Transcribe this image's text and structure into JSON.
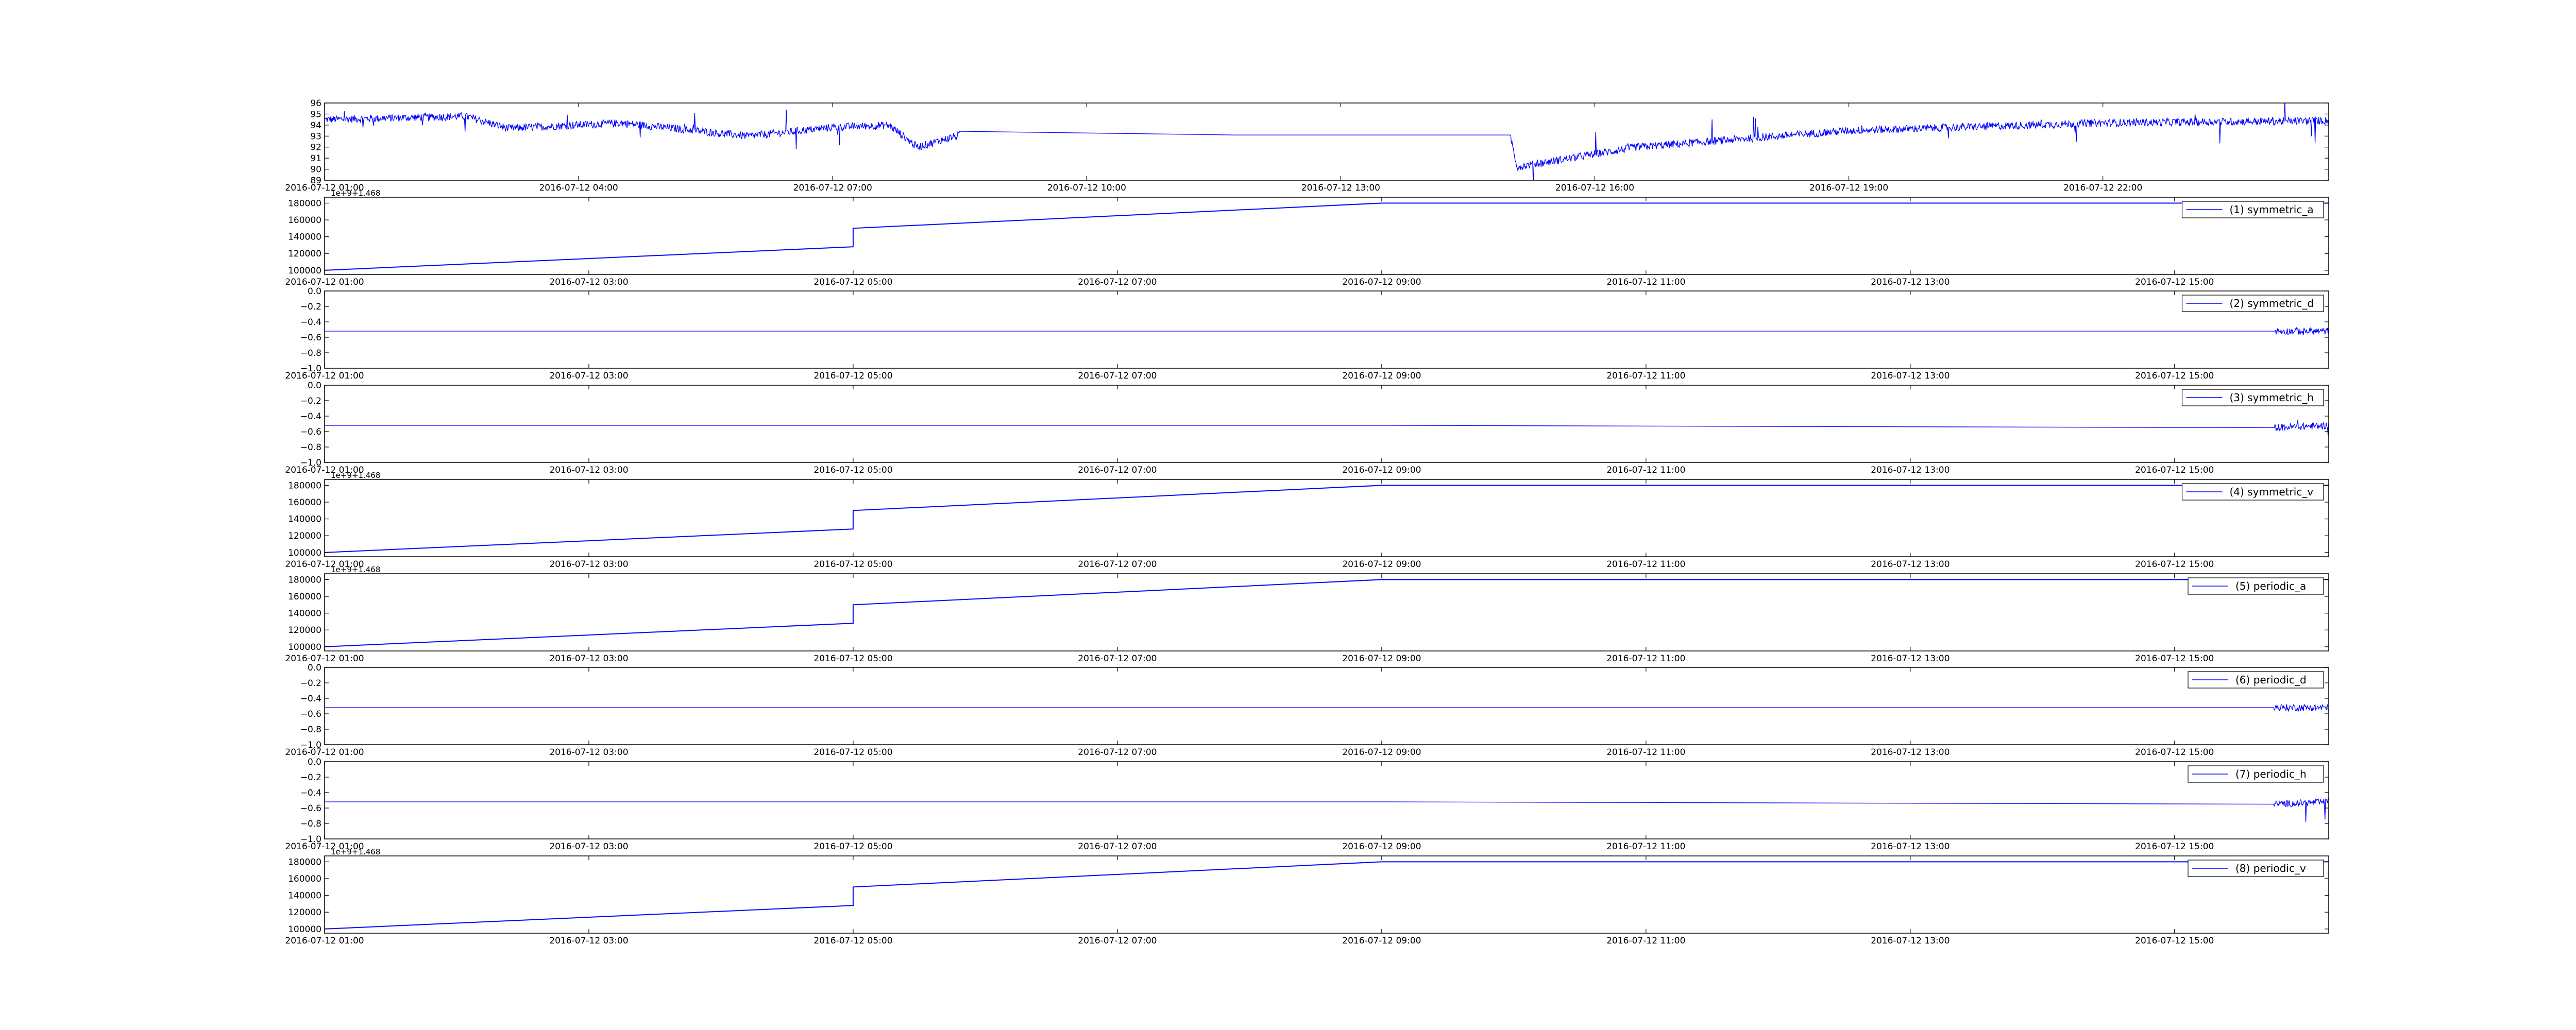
{
  "chart_data": [
    {
      "type": "line",
      "panel": 0,
      "title": "",
      "xlabel": "",
      "ylabel": "",
      "x_tick_labels": [
        "2016-07-12 01:00",
        "2016-07-12 04:00",
        "2016-07-12 07:00",
        "2016-07-12 10:00",
        "2016-07-12 13:00",
        "2016-07-12 16:00",
        "2016-07-12 19:00",
        "2016-07-12 22:00"
      ],
      "xlim": [
        "2016-07-12 01:00",
        "2016-07-13 00:40"
      ],
      "y_ticks": [
        89,
        90,
        91,
        92,
        93,
        94,
        95,
        96
      ],
      "ylim": [
        89,
        96
      ],
      "grid": false,
      "color": "#0000ff",
      "noise": 0.35,
      "series": [
        {
          "x": [
            "2016-07-12 01:00",
            "2016-07-12 02:40",
            "2016-07-12 03:10",
            "2016-07-12 04:30",
            "2016-07-12 06:00",
            "2016-07-12 07:00",
            "2016-07-12 07:40",
            "2016-07-12 08:00",
            "2016-07-12 08:30",
            "2016-07-12 15:00",
            "2016-07-12 15:05",
            "2016-07-12 16:30",
            "2016-07-12 19:00",
            "2016-07-12 22:00",
            "2016-07-13 00:40"
          ],
          "y": [
            94.5,
            94.8,
            93.7,
            94.2,
            93.0,
            93.8,
            94.0,
            92.0,
            93.1,
            93.1,
            90.2,
            92.0,
            93.5,
            94.2,
            94.4
          ]
        }
      ]
    },
    {
      "type": "line",
      "panel": 1,
      "title": "",
      "xlabel": "",
      "ylabel": "",
      "x_tick_labels": [
        "2016-07-12 01:00",
        "2016-07-12 03:00",
        "2016-07-12 05:00",
        "2016-07-12 07:00",
        "2016-07-12 09:00",
        "2016-07-12 11:00",
        "2016-07-12 13:00",
        "2016-07-12 15:00"
      ],
      "xlim": [
        "2016-07-12 01:00",
        "2016-07-12 16:10"
      ],
      "y_ticks": [
        100000,
        120000,
        140000,
        160000,
        180000
      ],
      "ylim": [
        95000,
        187000
      ],
      "offset_text": "1e+9+1.468",
      "grid": false,
      "color": "#0000ff",
      "noise": 0,
      "legend": "(1) symmetric_a",
      "legend_loc": "upper right",
      "series": [
        {
          "name": "(1) symmetric_a",
          "x": [
            "2016-07-12 01:00",
            "2016-07-12 05:00",
            "2016-07-12 05:00",
            "2016-07-12 09:00",
            "2016-07-12 16:10"
          ],
          "y": [
            100000,
            128000,
            150000,
            180000,
            180000
          ]
        }
      ]
    },
    {
      "type": "line",
      "panel": 2,
      "title": "",
      "xlabel": "",
      "ylabel": "",
      "x_tick_labels": [
        "2016-07-12 01:00",
        "2016-07-12 03:00",
        "2016-07-12 05:00",
        "2016-07-12 07:00",
        "2016-07-12 09:00",
        "2016-07-12 11:00",
        "2016-07-12 13:00",
        "2016-07-12 15:00"
      ],
      "xlim": [
        "2016-07-12 01:00",
        "2016-07-12 16:10"
      ],
      "y_ticks": [
        -1.0,
        -0.8,
        -0.6,
        -0.4,
        -0.2,
        0.0
      ],
      "y_tick_labels": [
        "−1.0",
        "−0.8",
        "−0.6",
        "−0.4",
        "−0.2",
        "0.0"
      ],
      "ylim": [
        -1.0,
        0.0
      ],
      "grid": false,
      "color": "#0000ff",
      "noise": 0.045,
      "legend": "(2) symmetric_d",
      "legend_loc": "upper right",
      "series": [
        {
          "name": "(2) symmetric_d",
          "x": [
            "2016-07-12 01:00",
            "2016-07-12 09:04",
            "2016-07-12 15:45",
            "2016-07-12 16:10"
          ],
          "y": [
            -0.52,
            -0.52,
            -0.52,
            -0.52
          ]
        }
      ]
    },
    {
      "type": "line",
      "panel": 3,
      "title": "",
      "xlabel": "",
      "ylabel": "",
      "x_tick_labels": [
        "2016-07-12 01:00",
        "2016-07-12 03:00",
        "2016-07-12 05:00",
        "2016-07-12 07:00",
        "2016-07-12 09:00",
        "2016-07-12 11:00",
        "2016-07-12 13:00",
        "2016-07-12 15:00"
      ],
      "xlim": [
        "2016-07-12 01:00",
        "2016-07-12 16:10"
      ],
      "y_ticks": [
        -1.0,
        -0.8,
        -0.6,
        -0.4,
        -0.2,
        0.0
      ],
      "y_tick_labels": [
        "−1.0",
        "−0.8",
        "−0.6",
        "−0.4",
        "−0.2",
        "0.0"
      ],
      "ylim": [
        -1.0,
        0.0
      ],
      "grid": false,
      "color": "#0000ff",
      "noise": 0.045,
      "legend": "(3) symmetric_h",
      "legend_loc": "upper right",
      "series": [
        {
          "name": "(3) symmetric_h",
          "x": [
            "2016-07-12 01:00",
            "2016-07-12 09:04",
            "2016-07-12 15:45",
            "2016-07-12 16:10"
          ],
          "y": [
            -0.52,
            -0.52,
            -0.55,
            -0.52
          ]
        }
      ]
    },
    {
      "type": "line",
      "panel": 4,
      "title": "",
      "xlabel": "",
      "ylabel": "",
      "x_tick_labels": [
        "2016-07-12 01:00",
        "2016-07-12 03:00",
        "2016-07-12 05:00",
        "2016-07-12 07:00",
        "2016-07-12 09:00",
        "2016-07-12 11:00",
        "2016-07-12 13:00",
        "2016-07-12 15:00"
      ],
      "xlim": [
        "2016-07-12 01:00",
        "2016-07-12 16:10"
      ],
      "y_ticks": [
        100000,
        120000,
        140000,
        160000,
        180000
      ],
      "ylim": [
        95000,
        187000
      ],
      "offset_text": "1e+9+1.468",
      "grid": false,
      "color": "#0000ff",
      "noise": 0,
      "legend": "(4) symmetric_v",
      "legend_loc": "upper right",
      "series": [
        {
          "name": "(4) symmetric_v",
          "x": [
            "2016-07-12 01:00",
            "2016-07-12 05:00",
            "2016-07-12 05:00",
            "2016-07-12 09:00",
            "2016-07-12 16:10"
          ],
          "y": [
            100000,
            128000,
            150000,
            180000,
            180000
          ]
        }
      ]
    },
    {
      "type": "line",
      "panel": 5,
      "title": "",
      "xlabel": "",
      "ylabel": "",
      "x_tick_labels": [
        "2016-07-12 01:00",
        "2016-07-12 03:00",
        "2016-07-12 05:00",
        "2016-07-12 07:00",
        "2016-07-12 09:00",
        "2016-07-12 11:00",
        "2016-07-12 13:00",
        "2016-07-12 15:00"
      ],
      "xlim": [
        "2016-07-12 01:00",
        "2016-07-12 16:10"
      ],
      "y_ticks": [
        100000,
        120000,
        140000,
        160000,
        180000
      ],
      "ylim": [
        95000,
        187000
      ],
      "offset_text": "1e+9+1.468",
      "grid": false,
      "color": "#0000ff",
      "noise": 0,
      "legend": "(5) periodic_a",
      "legend_loc": "upper right",
      "series": [
        {
          "name": "(5) periodic_a",
          "x": [
            "2016-07-12 01:00",
            "2016-07-12 05:00",
            "2016-07-12 05:00",
            "2016-07-12 09:00",
            "2016-07-12 16:10"
          ],
          "y": [
            100000,
            128000,
            150000,
            180000,
            180000
          ]
        }
      ]
    },
    {
      "type": "line",
      "panel": 6,
      "title": "",
      "xlabel": "",
      "ylabel": "",
      "x_tick_labels": [
        "2016-07-12 01:00",
        "2016-07-12 03:00",
        "2016-07-12 05:00",
        "2016-07-12 07:00",
        "2016-07-12 09:00",
        "2016-07-12 11:00",
        "2016-07-12 13:00",
        "2016-07-12 15:00"
      ],
      "xlim": [
        "2016-07-12 01:00",
        "2016-07-12 16:10"
      ],
      "y_ticks": [
        -1.0,
        -0.8,
        -0.6,
        -0.4,
        -0.2,
        0.0
      ],
      "y_tick_labels": [
        "−1.0",
        "−0.8",
        "−0.6",
        "−0.4",
        "−0.2",
        "0.0"
      ],
      "ylim": [
        -1.0,
        0.0
      ],
      "grid": false,
      "color": "#0000ff",
      "noise": 0.045,
      "legend": "(6) periodic_d",
      "legend_loc": "upper right",
      "series": [
        {
          "name": "(6) periodic_d",
          "x": [
            "2016-07-12 01:00",
            "2016-07-12 09:04",
            "2016-07-12 15:45",
            "2016-07-12 16:10"
          ],
          "y": [
            -0.52,
            -0.52,
            -0.52,
            -0.52
          ]
        }
      ]
    },
    {
      "type": "line",
      "panel": 7,
      "title": "",
      "xlabel": "",
      "ylabel": "",
      "x_tick_labels": [
        "2016-07-12 01:00",
        "2016-07-12 03:00",
        "2016-07-12 05:00",
        "2016-07-12 07:00",
        "2016-07-12 09:00",
        "2016-07-12 11:00",
        "2016-07-12 13:00",
        "2016-07-12 15:00"
      ],
      "xlim": [
        "2016-07-12 01:00",
        "2016-07-12 16:10"
      ],
      "y_ticks": [
        -1.0,
        -0.8,
        -0.6,
        -0.4,
        -0.2,
        0.0
      ],
      "y_tick_labels": [
        "−1.0",
        "−0.8",
        "−0.6",
        "−0.4",
        "−0.2",
        "0.0"
      ],
      "ylim": [
        -1.0,
        0.0
      ],
      "grid": false,
      "color": "#0000ff",
      "noise": 0.045,
      "legend": "(7) periodic_h",
      "legend_loc": "upper right",
      "series": [
        {
          "name": "(7) periodic_h",
          "x": [
            "2016-07-12 01:00",
            "2016-07-12 09:04",
            "2016-07-12 15:45",
            "2016-07-12 16:10"
          ],
          "y": [
            -0.52,
            -0.52,
            -0.55,
            -0.52
          ]
        }
      ]
    },
    {
      "type": "line",
      "panel": 8,
      "title": "",
      "xlabel": "",
      "ylabel": "",
      "x_tick_labels": [
        "2016-07-12 01:00",
        "2016-07-12 03:00",
        "2016-07-12 05:00",
        "2016-07-12 07:00",
        "2016-07-12 09:00",
        "2016-07-12 11:00",
        "2016-07-12 13:00",
        "2016-07-12 15:00"
      ],
      "xlim": [
        "2016-07-12 01:00",
        "2016-07-12 16:10"
      ],
      "y_ticks": [
        100000,
        120000,
        140000,
        160000,
        180000
      ],
      "ylim": [
        95000,
        187000
      ],
      "offset_text": "1e+9+1.468",
      "grid": false,
      "color": "#0000ff",
      "noise": 0,
      "legend": "(8) periodic_v",
      "legend_loc": "upper right",
      "series": [
        {
          "name": "(8) periodic_v",
          "x": [
            "2016-07-12 01:00",
            "2016-07-12 05:00",
            "2016-07-12 05:00",
            "2016-07-12 09:00",
            "2016-07-12 16:10"
          ],
          "y": [
            100000,
            128000,
            150000,
            180000,
            180000
          ]
        }
      ]
    }
  ]
}
